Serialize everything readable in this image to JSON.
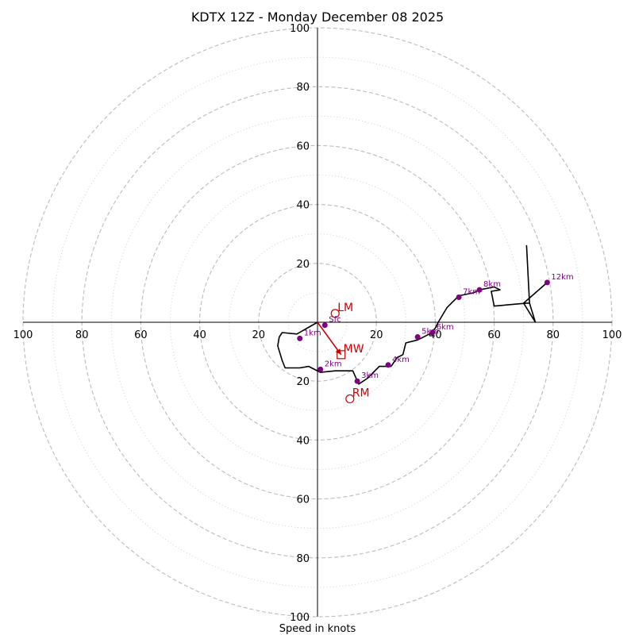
{
  "chart_data": {
    "type": "hodograph",
    "title": "KDTX 12Z - Monday December 08 2025",
    "xlabel": "Speed in knots",
    "max_speed": 100,
    "rings_major": [
      20,
      40,
      60,
      80,
      100
    ],
    "rings_minor": [
      10,
      30,
      50,
      70,
      90
    ],
    "axis_ticks": [
      20,
      40,
      60,
      80,
      100
    ],
    "colors": {
      "trace": "#000000",
      "height_markers": "#800080",
      "motion": "#cc0000",
      "grid": "#bbbbbb"
    },
    "hodograph_uv": [
      [
        0,
        0
      ],
      [
        -7,
        -4
      ],
      [
        -12,
        -3.5
      ],
      [
        -13,
        -5
      ],
      [
        -13.5,
        -8
      ],
      [
        -12,
        -13
      ],
      [
        -11,
        -15.5
      ],
      [
        -6,
        -15.5
      ],
      [
        -3,
        -15
      ],
      [
        1,
        -17
      ],
      [
        6,
        -16.5
      ],
      [
        12,
        -16.5
      ],
      [
        14,
        -21
      ],
      [
        17,
        -19
      ],
      [
        21,
        -15
      ],
      [
        25,
        -15
      ],
      [
        27,
        -12
      ],
      [
        29,
        -11
      ],
      [
        30,
        -7
      ],
      [
        34,
        -6
      ],
      [
        38,
        -4
      ],
      [
        40,
        -2
      ],
      [
        41,
        0
      ],
      [
        44,
        5
      ],
      [
        48,
        9
      ],
      [
        53,
        10
      ],
      [
        55,
        11
      ],
      [
        60,
        12
      ],
      [
        62,
        11
      ],
      [
        59,
        10.5
      ],
      [
        60,
        5.5
      ],
      [
        71,
        6.5
      ],
      [
        72,
        6.5
      ],
      [
        71,
        26
      ],
      [
        72,
        6.5
      ],
      [
        74,
        0
      ],
      [
        70,
        6.5
      ],
      [
        78,
        13.5
      ]
    ],
    "height_markers": [
      {
        "label": "Sfc",
        "u": 2.5,
        "v": -1
      },
      {
        "label": "1km",
        "u": -6,
        "v": -5.5
      },
      {
        "label": "2km",
        "u": 1,
        "v": -16
      },
      {
        "label": "3km",
        "u": 13.5,
        "v": -20
      },
      {
        "label": "4km",
        "u": 24,
        "v": -14.5
      },
      {
        "label": "5km",
        "u": 34,
        "v": -5
      },
      {
        "label": "6km",
        "u": 39,
        "v": -3.5
      },
      {
        "label": "7km",
        "u": 48,
        "v": 8.5
      },
      {
        "label": "8km",
        "u": 55,
        "v": 11
      },
      {
        "label": "12km",
        "u": 78,
        "v": 13.5
      }
    ],
    "storm_motion": [
      {
        "label": "LM",
        "u": 6,
        "v": 3,
        "marker": "circle"
      },
      {
        "label": "MW",
        "u": 8,
        "v": -11,
        "marker": "square"
      },
      {
        "label": "RM",
        "u": 11,
        "v": -26,
        "marker": "circle"
      }
    ],
    "shear_vector": {
      "from": [
        0,
        0
      ],
      "to": [
        8,
        -11
      ]
    }
  }
}
